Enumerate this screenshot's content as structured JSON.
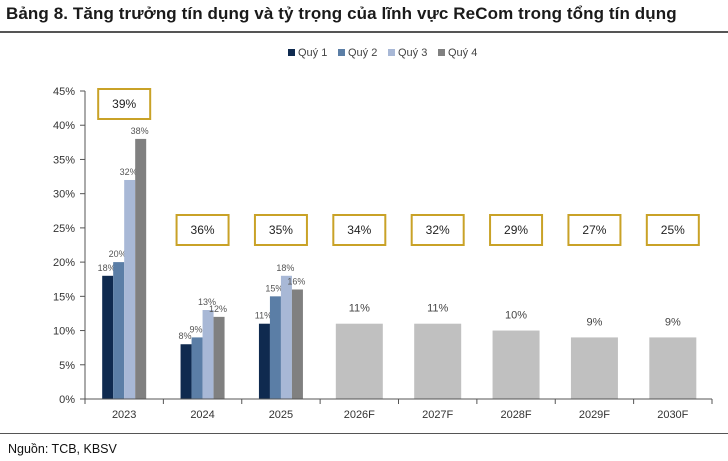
{
  "title": "Bảng 8. Tăng trưởng tín dụng và tỷ trọng của lĩnh vực ReCom trong tổng tín dụng",
  "source": "Nguồn: TCB, KBSV",
  "colors": {
    "q1": "#0f2a4f",
    "q2": "#5b7ea6",
    "q3": "#a8b8d6",
    "q4": "#808080",
    "forecast": "#c0c0c0",
    "box_border": "#c9a227"
  },
  "chart_data": {
    "type": "bar",
    "categories": [
      "2023",
      "2024",
      "2025",
      "2026F",
      "2027F",
      "2028F",
      "2029F",
      "2030F"
    ],
    "ylim": [
      0,
      45
    ],
    "yticks": [
      0,
      5,
      10,
      15,
      20,
      25,
      30,
      35,
      40,
      45
    ],
    "ytick_labels": [
      "0%",
      "5%",
      "10%",
      "15%",
      "20%",
      "25%",
      "30%",
      "35%",
      "40%",
      "45%"
    ],
    "legend": [
      "Quý 1",
      "Quý 2",
      "Quý 3",
      "Quý 4"
    ],
    "legend_position": "top",
    "quarterly": [
      {
        "category": "2023",
        "values": [
          18,
          20,
          32,
          38
        ]
      },
      {
        "category": "2024",
        "values": [
          8,
          9,
          13,
          12
        ]
      },
      {
        "category": "2025",
        "values": [
          11,
          15,
          18,
          16
        ]
      }
    ],
    "annual": [
      {
        "category": "2026F",
        "value": 11
      },
      {
        "category": "2027F",
        "value": 11
      },
      {
        "category": "2028F",
        "value": 10
      },
      {
        "category": "2029F",
        "value": 9
      },
      {
        "category": "2030F",
        "value": 9
      }
    ],
    "share_labels": [
      "39%",
      "36%",
      "35%",
      "34%",
      "32%",
      "29%",
      "27%",
      "25%"
    ]
  }
}
